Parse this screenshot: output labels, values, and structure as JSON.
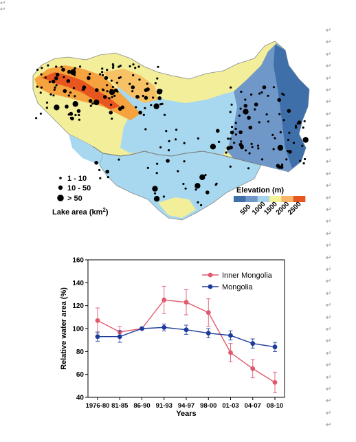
{
  "document": {
    "paragraph_mark": "↵",
    "top_marks": [
      "↩",
      "↩"
    ]
  },
  "map": {
    "lake_area_title": "Lake area (km",
    "lake_area_superscript": "2",
    "lake_area_suffix": ")",
    "size_classes": [
      "1 - 10",
      "10 - 50",
      "> 50"
    ],
    "elevation_title": "Elevation (m)",
    "elevation_ticks": [
      "500",
      "1000",
      "1500",
      "2000",
      "2500"
    ],
    "elevation_colors": [
      "#3f6fa8",
      "#6f98c9",
      "#a8d3ee",
      "#f5f39a",
      "#f7b46a",
      "#e8561f"
    ]
  },
  "chart_data": {
    "type": "line",
    "categories": [
      "1976-80",
      "81-85",
      "86-90",
      "91-93",
      "94-97",
      "98-00",
      "01-03",
      "04-07",
      "08-10"
    ],
    "xlabel": "Years",
    "ylabel": "Relative water area (%)",
    "ylim": [
      40,
      160
    ],
    "yticks": [
      40,
      60,
      80,
      100,
      120,
      140,
      160
    ],
    "grid": false,
    "legend_position": "top-right",
    "series": [
      {
        "name": "Inner Mongolia",
        "color": "#e05a6e",
        "values": [
          107,
          97,
          100,
          125,
          123,
          114,
          79,
          65,
          53
        ],
        "error": [
          11,
          5,
          0,
          12,
          11,
          12,
          8,
          8,
          9
        ]
      },
      {
        "name": "Mongolia",
        "color": "#1d3c9a",
        "values": [
          93,
          93,
          100,
          101,
          99,
          96,
          94,
          87,
          84
        ],
        "error": [
          4,
          5,
          0,
          3,
          4,
          4,
          4,
          4,
          4
        ]
      }
    ]
  }
}
